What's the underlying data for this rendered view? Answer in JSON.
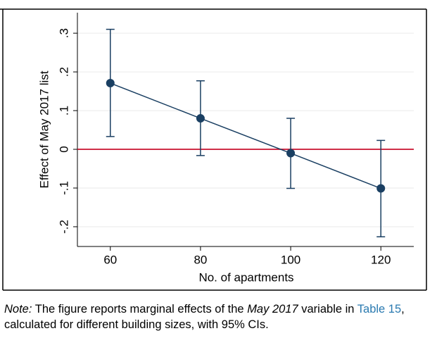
{
  "chart_data": {
    "type": "errorbar",
    "x_label": "No. of apartments",
    "y_label": "Effect of May 2017 list",
    "x": [
      60,
      80,
      100,
      120
    ],
    "series": [
      {
        "color": "#1a3f62",
        "values": [
          0.171,
          0.08,
          -0.01,
          -0.101
        ],
        "ci_lower": [
          0.033,
          -0.016,
          -0.101,
          -0.226
        ],
        "ci_upper": [
          0.31,
          0.177,
          0.08,
          0.023
        ]
      }
    ],
    "xlim": [
      52.7,
      127.3
    ],
    "xticks": [
      60,
      80,
      100,
      120
    ],
    "ylim": [
      -0.251,
      0.353
    ],
    "yticks": [
      {
        "value": -0.2,
        "label": "-.2"
      },
      {
        "value": -0.1,
        "label": "-.1"
      },
      {
        "value": 0,
        "label": "0"
      },
      {
        "value": 0.1,
        "label": ".1"
      },
      {
        "value": 0.2,
        "label": ".2"
      },
      {
        "value": 0.3,
        "label": ".3"
      }
    ],
    "grid": true,
    "reference_line": {
      "value": 0,
      "color": "#c8102e"
    }
  },
  "note": {
    "label": "Note:",
    "text1": "The figure reports marginal effects of the",
    "italic": "May 2017",
    "text2": "variable in",
    "link": "Table 15",
    "text3": ", calculated for different building sizes, with 95% CIs."
  }
}
